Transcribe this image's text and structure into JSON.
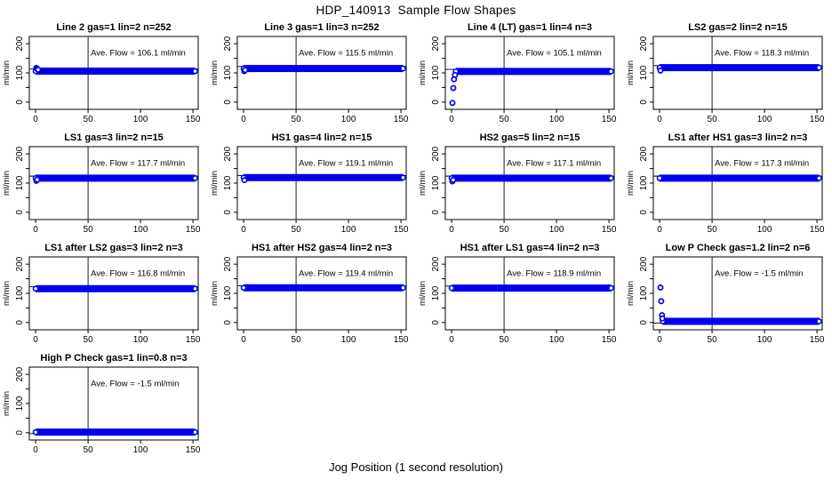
{
  "page": {
    "title": "HDP_140913  Sample Flow Shapes",
    "xlabel": "Jog Position (1 second resolution)"
  },
  "labels": {
    "ave_prefix": "Ave. Flow =  ",
    "ave_suffix": "   ml/min",
    "ylabel": "ml/min"
  },
  "axes": {
    "xlim": [
      -6,
      155
    ],
    "ylim": [
      -25,
      225
    ],
    "xticks": [
      0,
      50,
      100,
      150
    ],
    "xtick_labels": [
      "0",
      "50",
      "100",
      "150"
    ],
    "yticks": [
      0,
      50,
      100,
      150,
      200
    ],
    "ytick_labels": [
      "0",
      "",
      "100",
      "",
      "200"
    ],
    "vline_x": 50,
    "grid": false,
    "legend": "none"
  },
  "colors": {
    "point": "#0000EE",
    "axis": "#000000",
    "ref_line": "#000000",
    "background": "#FFFFFF"
  },
  "chart_data": [
    {
      "type": "scatter",
      "title": "Line 2 gas=1 lin=2 n=252",
      "ave_flow": "106.1",
      "band_y": 106,
      "band_x": [
        0,
        152
      ],
      "ref_y": 113,
      "start_points": [
        [
          0.6,
          117
        ],
        [
          1.4,
          114
        ],
        [
          2.4,
          111
        ]
      ]
    },
    {
      "type": "scatter",
      "title": "Line 3 gas=1 lin=3 n=252",
      "ave_flow": "115.5",
      "band_y": 115,
      "band_x": [
        0,
        152
      ],
      "ref_y": 122,
      "start_points": [
        [
          0.6,
          106
        ],
        [
          1.5,
          110
        ]
      ]
    },
    {
      "type": "scatter",
      "title": "Line 4 (LT) gas=1 lin=4 n=3",
      "ave_flow": "105.1",
      "band_y": 105,
      "band_x": [
        4,
        152
      ],
      "ref_y": 112,
      "start_points": [
        [
          0.8,
          -3
        ],
        [
          1.6,
          48
        ],
        [
          2.3,
          78
        ],
        [
          3.2,
          93
        ]
      ]
    },
    {
      "type": "scatter",
      "title": "LS2 gas=2 lin=2 n=15",
      "ave_flow": "118.3",
      "band_y": 118,
      "band_x": [
        0,
        152
      ],
      "ref_y": 125,
      "start_points": [
        [
          0.8,
          108
        ]
      ]
    },
    {
      "type": "scatter",
      "title": "LS1 gas=3 lin=2 n=15",
      "ave_flow": "117.7",
      "band_y": 117,
      "band_x": [
        0,
        152
      ],
      "ref_y": 124,
      "start_points": [
        [
          0.7,
          108
        ],
        [
          1.5,
          112
        ]
      ]
    },
    {
      "type": "scatter",
      "title": "HS1 gas=4 lin=2 n=15",
      "ave_flow": "119.1",
      "band_y": 119,
      "band_x": [
        0,
        152
      ],
      "ref_y": 126,
      "start_points": [
        [
          0.8,
          110
        ]
      ]
    },
    {
      "type": "scatter",
      "title": "HS2 gas=5 lin=2 n=15",
      "ave_flow": "117.1",
      "band_y": 117,
      "band_x": [
        0,
        152
      ],
      "ref_y": 124,
      "start_points": [
        [
          0.7,
          106
        ],
        [
          1.5,
          111
        ]
      ]
    },
    {
      "type": "scatter",
      "title": "LS1 after HS1 gas=3 lin=2 n=3",
      "ave_flow": "117.3",
      "band_y": 117,
      "band_x": [
        0,
        152
      ],
      "ref_y": 124,
      "start_points": []
    },
    {
      "type": "scatter",
      "title": "LS1 after LS2 gas=3 lin=2 n=3",
      "ave_flow": "116.8",
      "band_y": 116,
      "band_x": [
        0,
        152
      ],
      "ref_y": 123,
      "start_points": []
    },
    {
      "type": "scatter",
      "title": "HS1 after HS2 gas=4 lin=2 n=3",
      "ave_flow": "119.4",
      "band_y": 119,
      "band_x": [
        0,
        152
      ],
      "ref_y": 126,
      "start_points": []
    },
    {
      "type": "scatter",
      "title": "HS1 after LS1 gas=4 lin=2 n=3",
      "ave_flow": "118.9",
      "band_y": 118,
      "band_x": [
        0,
        152
      ],
      "ref_y": 125,
      "start_points": []
    },
    {
      "type": "scatter",
      "title": "Low P Check gas=1.2 lin=2 n=6",
      "ave_flow": "-1.5",
      "band_y": 4,
      "band_x": [
        3,
        152
      ],
      "ref_y": -2,
      "start_points": [
        [
          0.8,
          120
        ],
        [
          1.5,
          73
        ],
        [
          2.3,
          25
        ],
        [
          2.6,
          14
        ]
      ]
    },
    {
      "type": "scatter",
      "title": "High P Check gas=1 lin=0.8 n=3",
      "ave_flow": "-1.5",
      "band_y": 2,
      "band_x": [
        0,
        152
      ],
      "ref_y": -3,
      "start_points": []
    }
  ]
}
